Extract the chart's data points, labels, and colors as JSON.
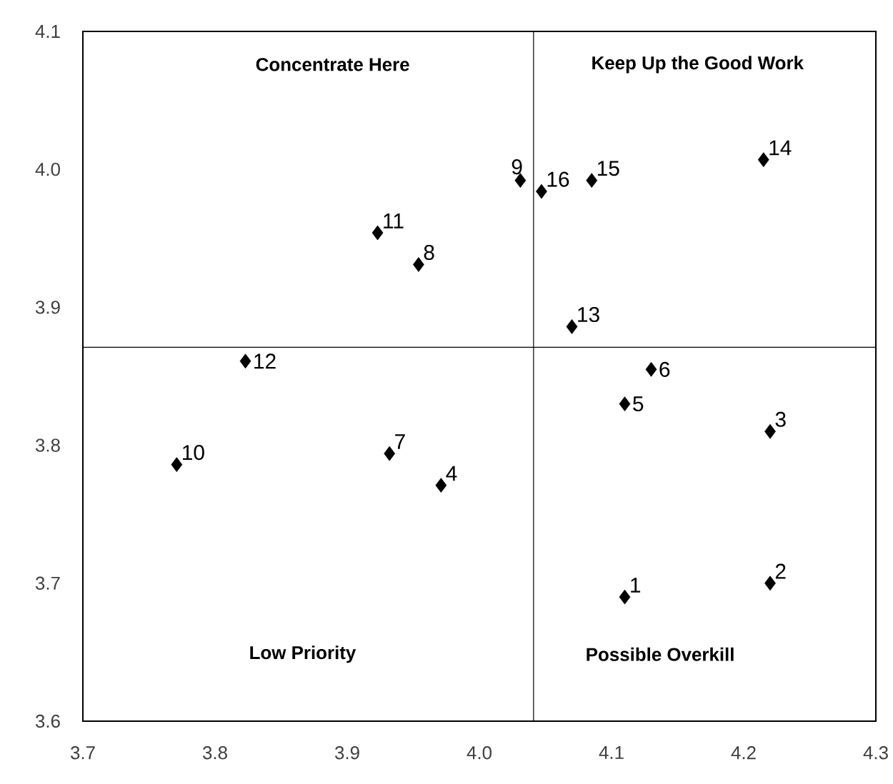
{
  "chart_data": {
    "type": "scatter",
    "x": [
      4.11,
      4.22,
      4.22,
      3.971,
      4.11,
      4.13,
      3.932,
      3.954,
      4.031,
      3.771,
      3.923,
      3.823,
      4.07,
      4.215,
      4.085,
      4.047
    ],
    "values": [
      3.69,
      3.7,
      3.81,
      3.771,
      3.83,
      3.855,
      3.794,
      3.931,
      3.992,
      3.786,
      3.954,
      3.861,
      3.886,
      4.007,
      3.992,
      3.984
    ],
    "color": "#000000",
    "marker": "diamond",
    "grid": false,
    "xlim": [
      3.7,
      4.3
    ],
    "xticks": [
      {
        "value": 3.7,
        "label": "3.7"
      },
      {
        "value": 3.8,
        "label": "3.8"
      },
      {
        "value": 3.9,
        "label": "3.9"
      },
      {
        "value": 4.0,
        "label": "4.0"
      },
      {
        "value": 4.1,
        "label": "4.1"
      },
      {
        "value": 4.2,
        "label": "4.2"
      },
      {
        "value": 4.3,
        "label": "4.3"
      }
    ],
    "ylim": [
      3.6,
      4.1
    ],
    "yticks": [
      {
        "value": 3.6,
        "label": "3.6"
      },
      {
        "value": 3.7,
        "label": "3.7"
      },
      {
        "value": 3.8,
        "label": "3.8"
      },
      {
        "value": 3.9,
        "label": "3.9"
      },
      {
        "value": 4.0,
        "label": "4.0"
      },
      {
        "value": 4.1,
        "label": "4.1"
      }
    ],
    "ref_lines": [
      {
        "axis": "x",
        "value": 4.041,
        "color": "#000000"
      },
      {
        "axis": "y",
        "value": 3.871,
        "color": "#000000"
      }
    ],
    "annotations": [
      "Concentrate Here",
      "Keep Up the Good Work",
      "Low Priority",
      "Possible Overkill",
      {
        "text": "1",
        "x": 4.11,
        "y": 3.69
      },
      {
        "text": "2",
        "x": 4.22,
        "y": 3.7
      },
      {
        "text": "3",
        "x": 4.22,
        "y": 3.81
      },
      {
        "text": "4",
        "x": 3.971,
        "y": 3.771
      },
      {
        "text": "5",
        "x": 4.11,
        "y": 3.83
      },
      {
        "text": "6",
        "x": 4.13,
        "y": 3.855
      },
      {
        "text": "7",
        "x": 3.932,
        "y": 3.794
      },
      {
        "text": "8",
        "x": 3.954,
        "y": 3.931
      },
      {
        "text": "9",
        "x": 4.031,
        "y": 3.992
      },
      {
        "text": "10",
        "x": 3.771,
        "y": 3.786
      },
      {
        "text": "11",
        "x": 3.923,
        "y": 3.954
      },
      {
        "text": "12",
        "x": 3.823,
        "y": 3.861
      },
      {
        "text": "13",
        "x": 4.07,
        "y": 3.886
      },
      {
        "text": "14",
        "x": 4.215,
        "y": 4.007
      },
      {
        "text": "15",
        "x": 4.085,
        "y": 3.992
      },
      {
        "text": "16",
        "x": 4.047,
        "y": 3.984
      }
    ]
  }
}
